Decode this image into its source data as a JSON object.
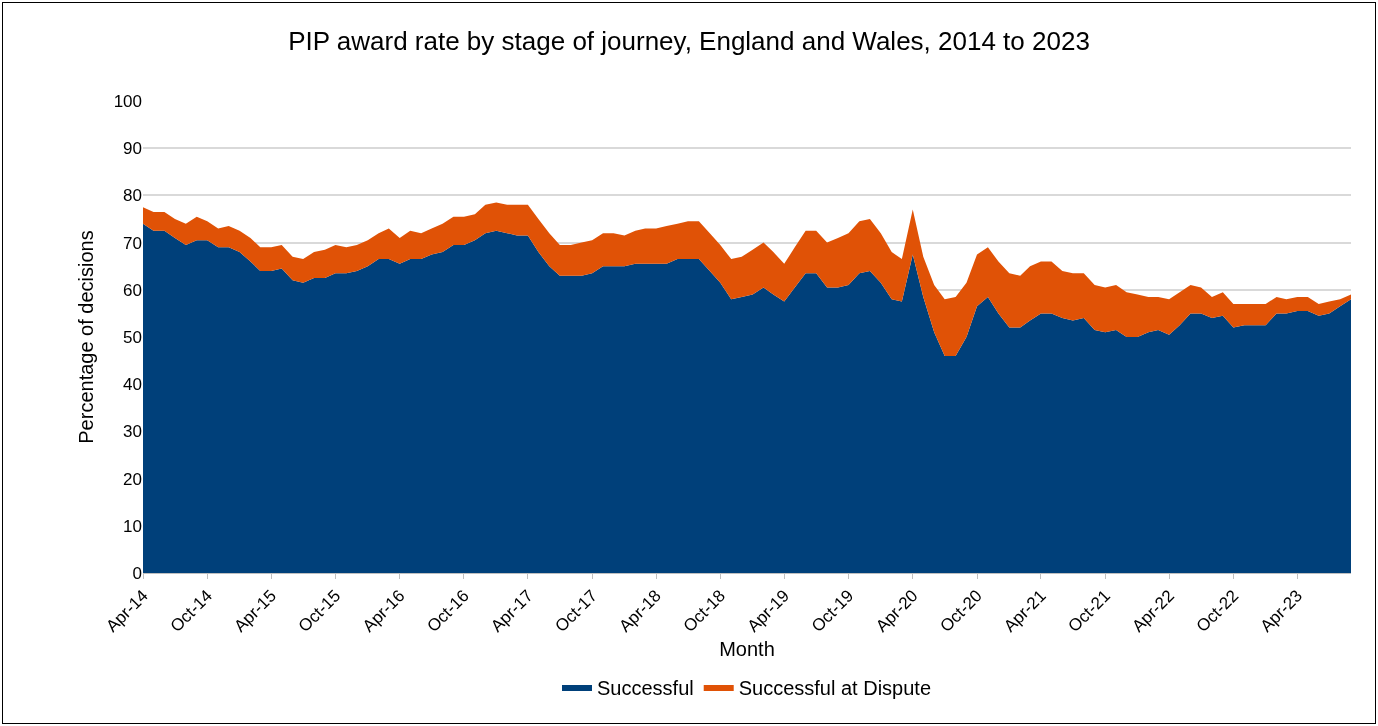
{
  "chart_data": {
    "type": "area",
    "stacked": true,
    "title": "PIP award rate by stage of journey, England and Wales, 2014 to 2023",
    "xlabel": "Month",
    "ylabel": "Percentage of decisions",
    "x": [
      "2014-04",
      "2014-05",
      "2014-06",
      "2014-07",
      "2014-08",
      "2014-09",
      "2014-10",
      "2014-11",
      "2014-12",
      "2015-01",
      "2015-02",
      "2015-03",
      "2015-04",
      "2015-05",
      "2015-06",
      "2015-07",
      "2015-08",
      "2015-09",
      "2015-10",
      "2015-11",
      "2015-12",
      "2016-01",
      "2016-02",
      "2016-03",
      "2016-04",
      "2016-05",
      "2016-06",
      "2016-07",
      "2016-08",
      "2016-09",
      "2016-10",
      "2016-11",
      "2016-12",
      "2017-01",
      "2017-02",
      "2017-03",
      "2017-04",
      "2017-05",
      "2017-06",
      "2017-07",
      "2017-08",
      "2017-09",
      "2017-10",
      "2017-11",
      "2017-12",
      "2018-01",
      "2018-02",
      "2018-03",
      "2018-04",
      "2018-05",
      "2018-06",
      "2018-07",
      "2018-08",
      "2018-09",
      "2018-10",
      "2018-11",
      "2018-12",
      "2019-01",
      "2019-02",
      "2019-03",
      "2019-04",
      "2019-05",
      "2019-06",
      "2019-07",
      "2019-08",
      "2019-09",
      "2019-10",
      "2019-11",
      "2019-12",
      "2020-01",
      "2020-02",
      "2020-03",
      "2020-04",
      "2020-05",
      "2020-06",
      "2020-07",
      "2020-08",
      "2020-09",
      "2020-10",
      "2020-11",
      "2020-12",
      "2021-01",
      "2021-02",
      "2021-03",
      "2021-04",
      "2021-05",
      "2021-06",
      "2021-07",
      "2021-08",
      "2021-09",
      "2021-10",
      "2021-11",
      "2021-12",
      "2022-01",
      "2022-02",
      "2022-03",
      "2022-04",
      "2022-05",
      "2022-06",
      "2022-07",
      "2022-08",
      "2022-09",
      "2022-10",
      "2022-11",
      "2022-12",
      "2023-01",
      "2023-02",
      "2023-03",
      "2023-04",
      "2023-05",
      "2023-06",
      "2023-07",
      "2023-08",
      "2023-09"
    ],
    "series": [
      {
        "name": "Successful",
        "color": "#00407a",
        "values": [
          74,
          72.5,
          72.5,
          71,
          69.5,
          70.5,
          70.5,
          69,
          69,
          68,
          66,
          64,
          64,
          64.5,
          62,
          61.5,
          62.5,
          62.5,
          63.5,
          63.5,
          64,
          65,
          66.5,
          66.5,
          65.5,
          66.5,
          66.5,
          67.5,
          68,
          69.5,
          69.5,
          70.5,
          72,
          72.5,
          72,
          71.5,
          71.5,
          68,
          65,
          63,
          63,
          63,
          63.5,
          65,
          65,
          65,
          65.5,
          65.5,
          65.5,
          65.5,
          66.5,
          66.5,
          66.5,
          64,
          61.5,
          58,
          58.5,
          59,
          60.5,
          59,
          57.5,
          60.5,
          63.5,
          63.5,
          60.5,
          60.5,
          61,
          63.5,
          64,
          61.5,
          58,
          57.5,
          67.5,
          58.5,
          51,
          46,
          46,
          50,
          56.5,
          58.5,
          55,
          52,
          52,
          53.5,
          55,
          55,
          54,
          53.5,
          54,
          51.5,
          51,
          51.5,
          50,
          50,
          51,
          51.5,
          50.5,
          52.5,
          55,
          55,
          54,
          54.5,
          52,
          52.5,
          52.5,
          52.5,
          55,
          55,
          55.5,
          55.5,
          54.5,
          55,
          56.5,
          58
        ]
      },
      {
        "name": "Successful at Dispute",
        "color": "#e05206",
        "values": [
          3.5,
          4,
          4,
          4,
          4.5,
          5,
          4,
          4,
          4.5,
          4.5,
          5,
          5,
          5,
          5,
          5,
          5,
          5.5,
          6,
          6,
          5.5,
          5.5,
          5.5,
          5.5,
          6.5,
          5.5,
          6,
          5.5,
          5.5,
          6,
          6,
          6,
          5.5,
          6,
          6,
          6,
          6.5,
          6.5,
          7,
          7,
          6.5,
          6.5,
          7,
          7,
          7,
          7,
          6.5,
          7,
          7.5,
          7.5,
          8,
          7.5,
          8,
          8,
          8,
          8,
          8.5,
          8.5,
          9.5,
          9.5,
          9,
          8,
          8.5,
          9,
          9,
          9.5,
          10.5,
          11,
          11,
          11,
          10.5,
          10,
          9,
          9.5,
          8.5,
          10,
          12,
          12.5,
          11.5,
          11,
          10.5,
          11,
          11.5,
          11,
          11.5,
          11,
          11,
          10,
          10,
          9.5,
          9.5,
          9.5,
          9.5,
          9.5,
          9,
          7.5,
          7,
          7.5,
          7,
          6,
          5.5,
          4.5,
          5,
          5,
          4.5,
          4.5,
          4.5,
          3.5,
          3,
          3,
          3,
          2.5,
          2.5,
          1.5,
          1
        ]
      }
    ],
    "xlim": [
      "2014-04",
      "2023-09"
    ],
    "xticks": [
      {
        "value": "2014-04",
        "label": "Apr-14"
      },
      {
        "value": "2014-10",
        "label": "Oct-14"
      },
      {
        "value": "2015-04",
        "label": "Apr-15"
      },
      {
        "value": "2015-10",
        "label": "Oct-15"
      },
      {
        "value": "2016-04",
        "label": "Apr-16"
      },
      {
        "value": "2016-10",
        "label": "Oct-16"
      },
      {
        "value": "2017-04",
        "label": "Apr-17"
      },
      {
        "value": "2017-10",
        "label": "Oct-17"
      },
      {
        "value": "2018-04",
        "label": "Apr-18"
      },
      {
        "value": "2018-10",
        "label": "Oct-18"
      },
      {
        "value": "2019-04",
        "label": "Apr-19"
      },
      {
        "value": "2019-10",
        "label": "Oct-19"
      },
      {
        "value": "2020-04",
        "label": "Apr-20"
      },
      {
        "value": "2020-10",
        "label": "Oct-20"
      },
      {
        "value": "2021-04",
        "label": "Apr-21"
      },
      {
        "value": "2021-10",
        "label": "Oct-21"
      },
      {
        "value": "2022-04",
        "label": "Apr-22"
      },
      {
        "value": "2022-10",
        "label": "Oct-22"
      },
      {
        "value": "2023-04",
        "label": "Apr-23"
      }
    ],
    "ylim": [
      0,
      100
    ],
    "yticks": [
      0,
      10,
      20,
      30,
      40,
      50,
      60,
      70,
      80,
      90,
      100
    ],
    "grid": "y",
    "legend": "bottom"
  }
}
